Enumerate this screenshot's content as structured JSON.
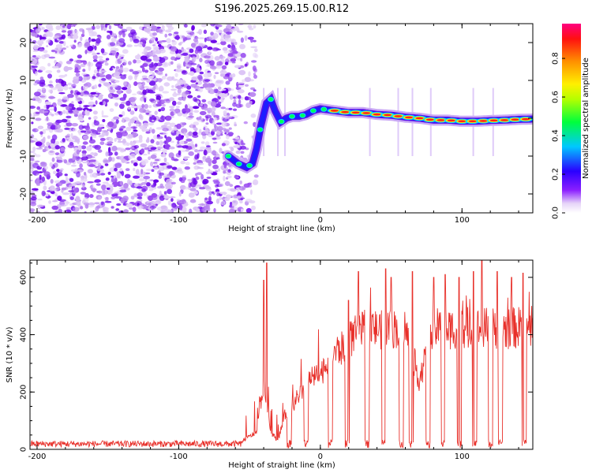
{
  "chart_data": [
    {
      "type": "heatmap",
      "title": "S196.2025.269.15.00.R12",
      "xlabel": "Height of straight line (km)",
      "ylabel": "Frequency (Hz)",
      "xlim": [
        -205,
        150
      ],
      "ylim": [
        -25,
        25
      ],
      "xticks": [
        "-200",
        "-100",
        "0",
        "100"
      ],
      "yticks": [
        "-20",
        "-10",
        "0",
        "10",
        "20"
      ],
      "colorbar": {
        "label": "Normalized spectral amplitude",
        "range": [
          0.0,
          0.98
        ],
        "ticks": [
          "0.0",
          "0.2",
          "0.4",
          "0.6",
          "0.8"
        ]
      },
      "ridge": {
        "description": "dominant frequency trace",
        "x": [
          -65,
          -58,
          -52,
          -48,
          -45,
          -42,
          -38,
          -35,
          -32,
          -28,
          -24,
          -20,
          -15,
          -10,
          -5,
          0,
          10,
          20,
          30,
          40,
          50,
          60,
          70,
          80,
          90,
          100,
          110,
          120,
          130,
          140,
          150
        ],
        "y": [
          -10,
          -12,
          -13,
          -12,
          -8,
          -2,
          4,
          5,
          2,
          -1,
          0,
          0.5,
          0.5,
          1,
          2,
          2.5,
          2,
          1.5,
          1.5,
          1,
          0.8,
          0.3,
          0,
          -0.5,
          -0.5,
          -0.8,
          -0.8,
          -0.6,
          -0.5,
          -0.3,
          -0.2
        ]
      },
      "noise_region": {
        "x": [
          -205,
          -50
        ],
        "y": [
          -25,
          25
        ]
      }
    },
    {
      "type": "line",
      "title": "",
      "xlabel": "Height of straight line (km)",
      "ylabel": "SNR (10 * v/v)",
      "xlim": [
        -205,
        150
      ],
      "ylim": [
        0,
        660
      ],
      "xticks": [
        "-200",
        "-100",
        "0",
        "100"
      ],
      "yticks": [
        "0",
        "200",
        "400",
        "600"
      ],
      "series": [
        {
          "name": "SNR",
          "color": "#e8302a",
          "envelope": {
            "x": [
              -205,
              -60,
              -45,
              -40,
              -35,
              -30,
              -25,
              -20,
              -15,
              -10,
              -5,
              0,
              5,
              10,
              15,
              20,
              25,
              30,
              40,
              50,
              60,
              70,
              80,
              90,
              100,
              110,
              120,
              130,
              140,
              150
            ],
            "y": [
              15,
              15,
              60,
              240,
              60,
              30,
              120,
              150,
              190,
              230,
              250,
              260,
              310,
              340,
              350,
              380,
              400,
              410,
              420,
              425,
              420,
              240,
              420,
              420,
              425,
              420,
              425,
              420,
              425,
              420
            ]
          },
          "dropouts_x": [
            -22,
            -10,
            7,
            19,
            33,
            45,
            57,
            64,
            76,
            87,
            98,
            109,
            120,
            127,
            144
          ],
          "spikes": [
            [
              -40,
              590
            ],
            [
              -38,
              650
            ],
            [
              20,
              520
            ],
            [
              27,
              620
            ],
            [
              46,
              630
            ],
            [
              50,
              600
            ],
            [
              65,
              620
            ],
            [
              80,
              600
            ],
            [
              88,
              610
            ],
            [
              98,
              600
            ],
            [
              108,
              620
            ],
            [
              114,
              660
            ],
            [
              125,
              620
            ],
            [
              135,
              600
            ],
            [
              143,
              615
            ]
          ]
        }
      ]
    }
  ]
}
